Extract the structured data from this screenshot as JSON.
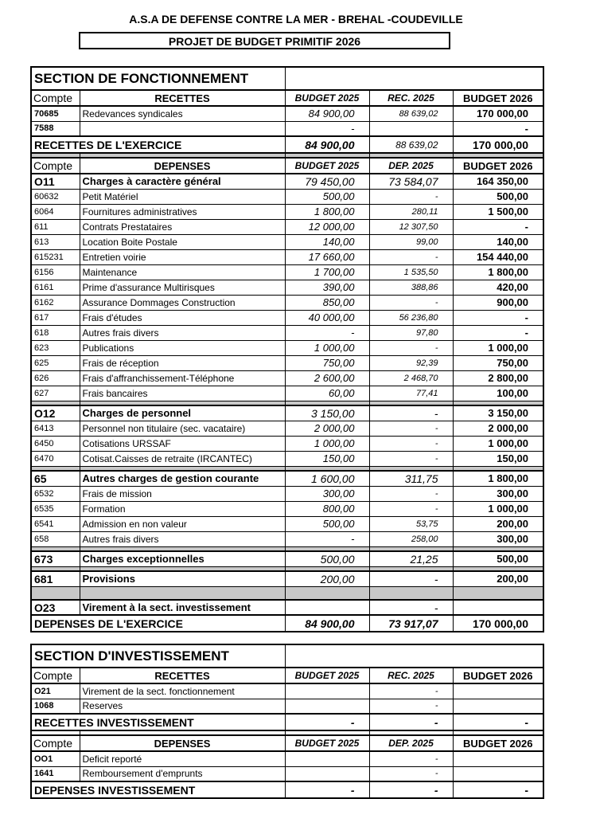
{
  "title": "A.S.A DE DEFENSE CONTRE LA MER - BREHAL -COUDEVILLE",
  "subtitle": "PROJET DE BUDGET PRIMITIF 2026",
  "fonctionnement": {
    "rows": [
      {
        "type": "section",
        "label": "SECTION DE FONCTIONNEMENT"
      },
      {
        "type": "header",
        "code": "Compte",
        "label": "RECETTES",
        "b2025": "BUDGET 2025",
        "r2025": "REC. 2025",
        "b2026": "BUDGET 2026"
      },
      {
        "type": "item bcode",
        "code": "70685",
        "label": "Redevances syndicales",
        "b2025": "84 900,00",
        "r2025": "88 639,02",
        "b2026": "170 000,00"
      },
      {
        "type": "item bcode",
        "code": "7588",
        "label": "",
        "b2025": "-",
        "r2025": "",
        "b2026": "-"
      },
      {
        "type": "total",
        "label": "RECETTES DE L'EXERCICE",
        "b2025": "84 900,00",
        "r2025": "88 639,02",
        "b2026": "170 000,00"
      },
      {
        "type": "spacer"
      },
      {
        "type": "header",
        "code": "Compte",
        "label": "DEPENSES",
        "b2025": "BUDGET 2025",
        "r2025": "DEP. 2025",
        "b2026": "BUDGET 2026"
      },
      {
        "type": "sub",
        "code": "O11",
        "label": "Charges à caractère général",
        "b2025": "79 450,00",
        "r2025": "73 584,07",
        "b2026": "164 350,00"
      },
      {
        "type": "item",
        "code": "60632",
        "label": "Petit Matériel",
        "b2025": "500,00",
        "r2025": "-",
        "b2026": "500,00"
      },
      {
        "type": "item",
        "code": "6064",
        "label": "Fournitures administratives",
        "b2025": "1 800,00",
        "r2025": "280,11",
        "b2026": "1 500,00"
      },
      {
        "type": "item",
        "code": "611",
        "label": "Contrats Prestataires",
        "b2025": "12 000,00",
        "r2025": "12 307,50",
        "b2026": "-"
      },
      {
        "type": "item",
        "code": "613",
        "label": "Location Boite Postale",
        "b2025": "140,00",
        "r2025": "99,00",
        "b2026": "140,00"
      },
      {
        "type": "item",
        "code": "615231",
        "label": "Entretien voirie",
        "b2025": "17 660,00",
        "r2025": "-",
        "b2026": "154 440,00"
      },
      {
        "type": "item",
        "code": "6156",
        "label": "Maintenance",
        "b2025": "1 700,00",
        "r2025": "1 535,50",
        "b2026": "1 800,00"
      },
      {
        "type": "item",
        "code": "6161",
        "label": "Prime d'assurance Multirisques",
        "b2025": "390,00",
        "r2025": "388,86",
        "b2026": "420,00"
      },
      {
        "type": "item",
        "code": "6162",
        "label": "Assurance Dommages Construction",
        "b2025": "850,00",
        "r2025": "-",
        "b2026": "900,00"
      },
      {
        "type": "item",
        "code": "617",
        "label": "Frais d'études",
        "b2025": "40 000,00",
        "r2025": "56 236,80",
        "b2026": "-"
      },
      {
        "type": "item",
        "code": "618",
        "label": "Autres frais divers",
        "b2025": "-",
        "r2025": "97,80",
        "b2026": "-"
      },
      {
        "type": "item",
        "code": "623",
        "label": "Publications",
        "b2025": "1 000,00",
        "r2025": "-",
        "b2026": "1 000,00"
      },
      {
        "type": "item",
        "code": "625",
        "label": "Frais de réception",
        "b2025": "750,00",
        "r2025": "92,39",
        "b2026": "750,00"
      },
      {
        "type": "item",
        "code": "626",
        "label": "Frais d'affranchissement-Téléphone",
        "b2025": "2 600,00",
        "r2025": "2 468,70",
        "b2026": "2 800,00"
      },
      {
        "type": "item",
        "code": "627",
        "label": "Frais bancaires",
        "b2025": "60,00",
        "r2025": "77,41",
        "b2026": "100,00"
      },
      {
        "type": "spacer"
      },
      {
        "type": "sub",
        "code": "O12",
        "label": "Charges de personnel",
        "b2025": "3 150,00",
        "r2025": "-",
        "b2026": "3 150,00"
      },
      {
        "type": "item",
        "code": "6413",
        "label": "Personnel non titulaire (sec. vacataire)",
        "b2025": "2 000,00",
        "r2025": "-",
        "b2026": "2 000,00"
      },
      {
        "type": "item",
        "code": "6450",
        "label": "Cotisations URSSAF",
        "b2025": "1 000,00",
        "r2025": "-",
        "b2026": "1 000,00"
      },
      {
        "type": "item",
        "code": "6470",
        "label": "Cotisat.Caisses de retraite (IRCANTEC)",
        "b2025": "150,00",
        "r2025": "-",
        "b2026": "150,00"
      },
      {
        "type": "spacer"
      },
      {
        "type": "sub",
        "code": "65",
        "label": "Autres charges de gestion courante",
        "b2025": "1 600,00",
        "r2025": "311,75",
        "b2026": "1 800,00"
      },
      {
        "type": "item",
        "code": "6532",
        "label": "Frais de mission",
        "b2025": "300,00",
        "r2025": "-",
        "b2026": "300,00"
      },
      {
        "type": "item",
        "code": "6535",
        "label": "Formation",
        "b2025": "800,00",
        "r2025": "-",
        "b2026": "1 000,00"
      },
      {
        "type": "item",
        "code": "6541",
        "label": "Admission en non valeur",
        "b2025": "500,00",
        "r2025": "53,75",
        "b2026": "200,00"
      },
      {
        "type": "item",
        "code": "658",
        "label": "Autres frais divers",
        "b2025": "-",
        "r2025": "258,00",
        "b2026": "300,00"
      },
      {
        "type": "spacer"
      },
      {
        "type": "sub",
        "code": "673",
        "label": "Charges exceptionnelles",
        "b2025": "500,00",
        "r2025": "21,25",
        "b2026": "500,00"
      },
      {
        "type": "spacer"
      },
      {
        "type": "sub",
        "code": "681",
        "label": "Provisions",
        "b2025": "200,00",
        "r2025": "-",
        "b2026": "200,00"
      },
      {
        "type": "spacer tall"
      },
      {
        "type": "sub",
        "code": "O23",
        "label": "Virement à la sect. investissement",
        "b2025": "",
        "r2025": "-",
        "b2026": ""
      },
      {
        "type": "total bold4",
        "label": "DEPENSES DE L'EXERCICE",
        "b2025": "84 900,00",
        "r2025": "73 917,07",
        "b2026": "170 000,00"
      }
    ]
  },
  "investissement": {
    "rows": [
      {
        "type": "section",
        "label": "SECTION D'INVESTISSEMENT"
      },
      {
        "type": "header",
        "code": "Compte",
        "label": "RECETTES",
        "b2025": "BUDGET 2025",
        "r2025": "REC. 2025",
        "b2026": "BUDGET 2026"
      },
      {
        "type": "item bcode",
        "code": "O21",
        "label": "Virement de la sect. fonctionnement",
        "b2025": "",
        "r2025": "-",
        "b2026": ""
      },
      {
        "type": "item bcode",
        "code": "1068",
        "label": "Reserves",
        "b2025": "",
        "r2025": "-",
        "b2026": ""
      },
      {
        "type": "total bold4",
        "label": "RECETTES INVESTISSEMENT",
        "b2025": "-",
        "r2025": "-",
        "b2026": "-"
      },
      {
        "type": "spacer white"
      },
      {
        "type": "header",
        "code": "Compte",
        "label": "DEPENSES",
        "b2025": "BUDGET 2025",
        "r2025": "DEP. 2025",
        "b2026": "BUDGET 2026"
      },
      {
        "type": "item bcode",
        "code": "OO1",
        "label": "Deficit reporté",
        "b2025": "",
        "r2025": "-",
        "b2026": ""
      },
      {
        "type": "item bcode",
        "code": "1641",
        "label": "Remboursement d'emprunts",
        "b2025": "",
        "r2025": "-",
        "b2026": ""
      },
      {
        "type": "total bold4",
        "label": "DEPENSES INVESTISSEMENT",
        "b2025": "-",
        "r2025": "-",
        "b2026": "-"
      }
    ]
  }
}
